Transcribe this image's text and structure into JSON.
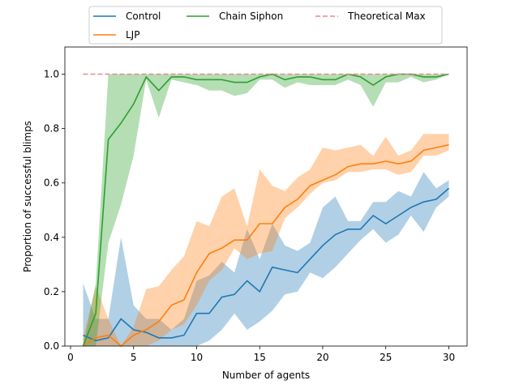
{
  "chart_data": {
    "type": "line",
    "xlabel": "Number of agents",
    "ylabel": "Proportion of successful blimps",
    "xlim": [
      -0.45,
      31.45
    ],
    "ylim": [
      0,
      1.1
    ],
    "xticks": [
      0,
      5,
      10,
      15,
      20,
      25,
      30
    ],
    "yticks": [
      0.0,
      0.2,
      0.4,
      0.6,
      0.8,
      1.0
    ],
    "ytick_labels": [
      "0.0",
      "0.2",
      "0.4",
      "0.6",
      "0.8",
      "1.0"
    ],
    "grid": false,
    "legend_placement": "top-center, above plot",
    "series": [
      {
        "name": "Control",
        "color": "#1f77b4",
        "x": [
          1,
          2,
          3,
          4,
          5,
          6,
          7,
          8,
          9,
          10,
          11,
          12,
          13,
          14,
          15,
          16,
          17,
          18,
          19,
          20,
          21,
          22,
          23,
          24,
          25,
          26,
          27,
          28,
          29,
          30
        ],
        "values": [
          0.04,
          0.02,
          0.03,
          0.1,
          0.06,
          0.05,
          0.03,
          0.03,
          0.04,
          0.12,
          0.12,
          0.18,
          0.19,
          0.24,
          0.2,
          0.29,
          0.28,
          0.27,
          0.32,
          0.37,
          0.41,
          0.43,
          0.43,
          0.48,
          0.45,
          0.48,
          0.51,
          0.53,
          0.54,
          0.58
        ],
        "lower": [
          0.0,
          0.0,
          0.0,
          0.0,
          0.0,
          0.0,
          0.0,
          0.0,
          0.0,
          0.0,
          0.02,
          0.06,
          0.12,
          0.06,
          0.09,
          0.13,
          0.19,
          0.2,
          0.27,
          0.25,
          0.29,
          0.34,
          0.39,
          0.43,
          0.38,
          0.41,
          0.48,
          0.42,
          0.51,
          0.55
        ],
        "upper": [
          0.23,
          0.1,
          0.1,
          0.4,
          0.15,
          0.1,
          0.1,
          0.06,
          0.1,
          0.24,
          0.26,
          0.31,
          0.27,
          0.43,
          0.32,
          0.45,
          0.37,
          0.35,
          0.38,
          0.51,
          0.55,
          0.46,
          0.46,
          0.53,
          0.53,
          0.57,
          0.55,
          0.64,
          0.58,
          0.61
        ]
      },
      {
        "name": "LJP",
        "color": "#ff7f0e",
        "x": [
          1,
          2,
          3,
          4,
          5,
          6,
          7,
          8,
          9,
          10,
          11,
          12,
          13,
          14,
          15,
          16,
          17,
          18,
          19,
          20,
          21,
          22,
          23,
          24,
          25,
          26,
          27,
          28,
          29,
          30
        ],
        "values": [
          0.0,
          0.03,
          0.04,
          0.0,
          0.04,
          0.06,
          0.09,
          0.15,
          0.17,
          0.27,
          0.34,
          0.36,
          0.39,
          0.39,
          0.45,
          0.45,
          0.51,
          0.54,
          0.59,
          0.61,
          0.63,
          0.66,
          0.67,
          0.67,
          0.68,
          0.67,
          0.68,
          0.72,
          0.73,
          0.74
        ],
        "lower": [
          0.0,
          0.0,
          0.0,
          0.0,
          0.0,
          0.0,
          0.02,
          0.06,
          0.08,
          0.15,
          0.24,
          0.28,
          0.36,
          0.32,
          0.34,
          0.35,
          0.47,
          0.51,
          0.56,
          0.6,
          0.61,
          0.64,
          0.64,
          0.65,
          0.65,
          0.63,
          0.64,
          0.7,
          0.7,
          0.72
        ],
        "upper": [
          0.03,
          0.22,
          0.1,
          0.0,
          0.07,
          0.21,
          0.22,
          0.28,
          0.33,
          0.46,
          0.44,
          0.55,
          0.58,
          0.44,
          0.65,
          0.59,
          0.57,
          0.62,
          0.65,
          0.73,
          0.72,
          0.73,
          0.74,
          0.7,
          0.77,
          0.7,
          0.72,
          0.78,
          0.78,
          0.78
        ]
      },
      {
        "name": "Chain Siphon",
        "color": "#2ca02c",
        "x": [
          1,
          2,
          3,
          4,
          5,
          6,
          7,
          8,
          9,
          10,
          11,
          12,
          13,
          14,
          15,
          16,
          17,
          18,
          19,
          20,
          21,
          22,
          23,
          24,
          25,
          26,
          27,
          28,
          29,
          30
        ],
        "values": [
          0.0,
          0.12,
          0.76,
          0.82,
          0.89,
          0.99,
          0.94,
          0.99,
          0.99,
          0.98,
          0.98,
          0.98,
          0.97,
          0.97,
          0.99,
          1.0,
          0.98,
          0.99,
          0.99,
          0.98,
          0.98,
          1.0,
          0.99,
          0.96,
          0.99,
          1.0,
          1.0,
          0.99,
          0.99,
          1.0
        ],
        "lower": [
          0.0,
          0.0,
          0.38,
          0.52,
          0.7,
          0.98,
          0.84,
          0.98,
          0.97,
          0.96,
          0.94,
          0.94,
          0.92,
          0.93,
          0.98,
          0.98,
          0.95,
          0.97,
          0.96,
          0.96,
          0.96,
          0.98,
          0.96,
          0.88,
          0.97,
          0.97,
          0.99,
          0.97,
          0.98,
          1.0
        ],
        "upper": [
          0.0,
          0.23,
          1.0,
          1.0,
          1.0,
          1.0,
          1.0,
          1.0,
          1.0,
          1.0,
          1.0,
          1.0,
          1.0,
          1.0,
          1.0,
          1.0,
          1.0,
          1.0,
          1.0,
          1.0,
          1.0,
          1.0,
          1.0,
          1.0,
          1.0,
          1.0,
          1.0,
          1.0,
          1.0,
          1.0
        ]
      },
      {
        "name": "Theoretical Max",
        "color": "#e8898c",
        "dashed": true,
        "x": [
          1,
          30
        ],
        "values": [
          1.0,
          1.0
        ]
      }
    ]
  }
}
